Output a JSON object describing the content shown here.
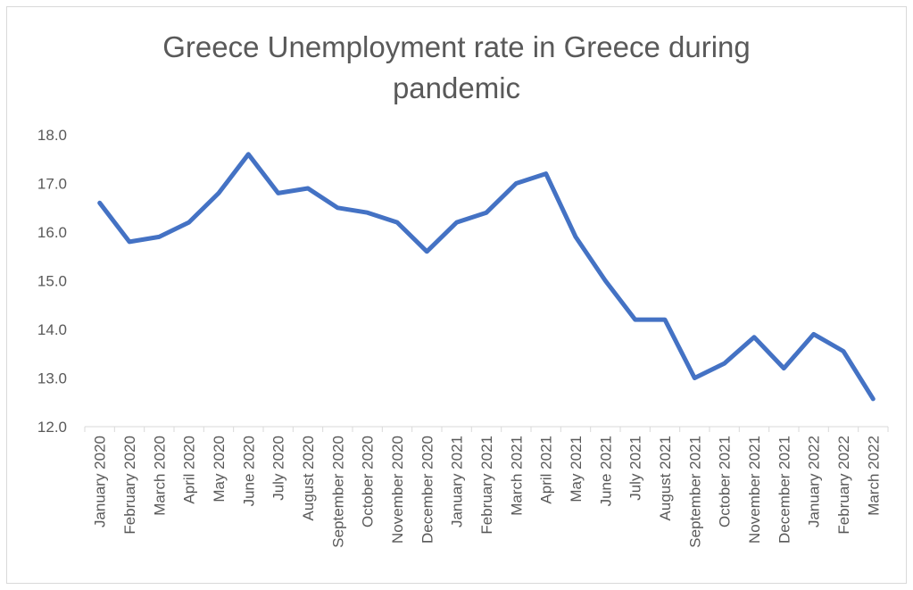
{
  "chart_data": {
    "type": "line",
    "title_lines": [
      "Greece Unemployment rate in Greece during",
      "pandemic"
    ],
    "xlabel": "",
    "ylabel": "",
    "ylim": [
      12.0,
      18.0
    ],
    "y_ticks": [
      "12.0",
      "13.0",
      "14.0",
      "15.0",
      "16.0",
      "17.0",
      "18.0"
    ],
    "grid": false,
    "legend": "none",
    "categories": [
      "January 2020",
      "February 2020",
      "March 2020",
      "April 2020",
      "May 2020",
      "June 2020",
      "July 2020",
      "August 2020",
      "September 2020",
      "October 2020",
      "November 2020",
      "December 2020",
      "January 2021",
      "February 2021",
      "March 2021",
      "April 2021",
      "May 2021",
      "June 2021",
      "July 2021",
      "August 2021",
      "September 2021",
      "October 2021",
      "November 2021",
      "December 2021",
      "January 2022",
      "February 2022",
      "March 2022"
    ],
    "series": [
      {
        "values": [
          16.6,
          15.8,
          15.9,
          16.2,
          16.8,
          17.6,
          16.8,
          16.9,
          16.5,
          16.4,
          16.2,
          15.6,
          16.2,
          16.4,
          17.0,
          17.2,
          15.9,
          15.0,
          14.2,
          14.2,
          13.0,
          13.3,
          13.84,
          13.2,
          13.9,
          13.55,
          12.57
        ],
        "color": "#4472c4"
      }
    ]
  }
}
